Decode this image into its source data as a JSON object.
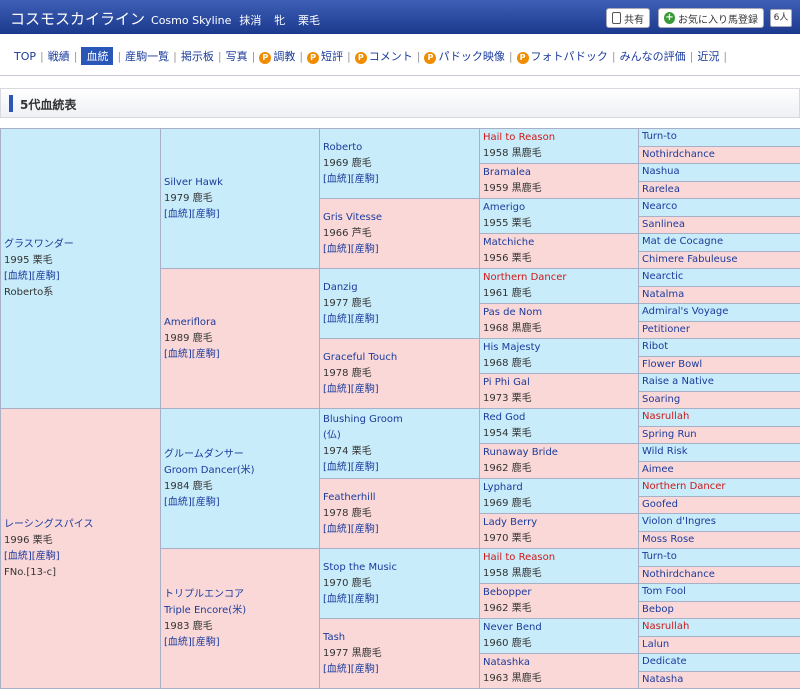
{
  "header": {
    "horse_name": "コスモスカイライン",
    "horse_name_en": "Cosmo Skyline",
    "status": "抹消",
    "sex": "牝",
    "color": "栗毛",
    "share_label": "共有",
    "fav_label": "お気に入り馬登録",
    "fav_count": "6人"
  },
  "nav": {
    "items": [
      {
        "label": "TOP",
        "badge": ""
      },
      {
        "label": "戦績",
        "badge": ""
      },
      {
        "label": "血統",
        "badge": "",
        "active": true
      },
      {
        "label": "産駒一覧",
        "badge": ""
      },
      {
        "label": "掲示板",
        "badge": ""
      },
      {
        "label": "写真",
        "badge": ""
      },
      {
        "label": "調教",
        "badge": "P"
      },
      {
        "label": "短評",
        "badge": "P"
      },
      {
        "label": "コメント",
        "badge": "P"
      },
      {
        "label": "パドック映像",
        "badge": "P"
      },
      {
        "label": "フォトパドック",
        "badge": "P"
      },
      {
        "label": "みんなの評価",
        "badge": ""
      },
      {
        "label": "近況",
        "badge": ""
      }
    ]
  },
  "section": {
    "title": "5代血統表"
  },
  "links_label": "[血統][産駒]",
  "pedigree": {
    "g1": [
      {
        "name": "グラスワンダー",
        "year": "1995",
        "color": "栗毛",
        "note": "Roberto系",
        "s": "m"
      },
      {
        "name": "レーシングスパイス",
        "year": "1996",
        "color": "栗毛",
        "note": "FNo.[13-c]",
        "s": "f"
      }
    ],
    "g2": [
      {
        "name": "Silver Hawk",
        "year": "1979",
        "color": "鹿毛",
        "s": "m"
      },
      {
        "name": "Ameriflora",
        "year": "1989",
        "color": "鹿毛",
        "s": "f"
      },
      {
        "name": "グルームダンサー",
        "name2": "Groom Dancer(米)",
        "year": "1984",
        "color": "鹿毛",
        "s": "m"
      },
      {
        "name": "トリプルエンコア",
        "name2": "Triple Encore(米)",
        "year": "1983",
        "color": "鹿毛",
        "s": "f"
      }
    ],
    "g3": [
      {
        "name": "Roberto",
        "year": "1969",
        "color": "鹿毛",
        "s": "m"
      },
      {
        "name": "Gris Vitesse",
        "year": "1966",
        "color": "芦毛",
        "s": "f"
      },
      {
        "name": "Danzig",
        "year": "1977",
        "color": "鹿毛",
        "s": "m"
      },
      {
        "name": "Graceful Touch",
        "year": "1978",
        "color": "鹿毛",
        "s": "f"
      },
      {
        "name": "Blushing Groom",
        "name2": "(仏)",
        "year": "1974",
        "color": "栗毛",
        "s": "m"
      },
      {
        "name": "Featherhill",
        "year": "1978",
        "color": "鹿毛",
        "s": "f"
      },
      {
        "name": "Stop the Music",
        "year": "1970",
        "color": "鹿毛",
        "s": "m"
      },
      {
        "name": "Tash",
        "year": "1977",
        "color": "黒鹿毛",
        "s": "f"
      }
    ],
    "g4": [
      {
        "name": "Hail to Reason",
        "year": "1958",
        "color": "黒鹿毛",
        "s": "m",
        "red": true
      },
      {
        "name": "Bramalea",
        "year": "1959",
        "color": "黒鹿毛",
        "s": "f"
      },
      {
        "name": "Amerigo",
        "year": "1955",
        "color": "栗毛",
        "s": "m"
      },
      {
        "name": "Matchiche",
        "year": "1956",
        "color": "栗毛",
        "s": "f"
      },
      {
        "name": "Northern Dancer",
        "year": "1961",
        "color": "鹿毛",
        "s": "m",
        "red": true
      },
      {
        "name": "Pas de Nom",
        "year": "1968",
        "color": "黒鹿毛",
        "s": "f"
      },
      {
        "name": "His Majesty",
        "year": "1968",
        "color": "鹿毛",
        "s": "m"
      },
      {
        "name": "Pi Phi Gal",
        "year": "1973",
        "color": "栗毛",
        "s": "f"
      },
      {
        "name": "Red God",
        "year": "1954",
        "color": "栗毛",
        "s": "m"
      },
      {
        "name": "Runaway Bride",
        "year": "1962",
        "color": "鹿毛",
        "s": "f"
      },
      {
        "name": "Lyphard",
        "year": "1969",
        "color": "鹿毛",
        "s": "m"
      },
      {
        "name": "Lady Berry",
        "year": "1970",
        "color": "栗毛",
        "s": "f"
      },
      {
        "name": "Hail to Reason",
        "year": "1958",
        "color": "黒鹿毛",
        "s": "m",
        "red": true
      },
      {
        "name": "Bebopper",
        "year": "1962",
        "color": "栗毛",
        "s": "f"
      },
      {
        "name": "Never Bend",
        "year": "1960",
        "color": "鹿毛",
        "s": "m"
      },
      {
        "name": "Natashka",
        "year": "1963",
        "color": "黒鹿毛",
        "s": "f"
      }
    ],
    "g5": [
      {
        "name": "Turn-to",
        "red": false
      },
      {
        "name": "Nothirdchance",
        "red": false
      },
      {
        "name": "Nashua",
        "red": false
      },
      {
        "name": "Rarelea",
        "red": false
      },
      {
        "name": "Nearco",
        "red": false
      },
      {
        "name": "Sanlinea",
        "red": false
      },
      {
        "name": "Mat de Cocagne",
        "red": false
      },
      {
        "name": "Chimere Fabuleuse",
        "red": false
      },
      {
        "name": "Nearctic",
        "red": false
      },
      {
        "name": "Natalma",
        "red": false
      },
      {
        "name": "Admiral's Voyage",
        "red": false
      },
      {
        "name": "Petitioner",
        "red": false
      },
      {
        "name": "Ribot",
        "red": false
      },
      {
        "name": "Flower Bowl",
        "red": false
      },
      {
        "name": "Raise a Native",
        "red": false
      },
      {
        "name": "Soaring",
        "red": false
      },
      {
        "name": "Nasrullah",
        "red": true
      },
      {
        "name": "Spring Run",
        "red": false
      },
      {
        "name": "Wild Risk",
        "red": false
      },
      {
        "name": "Aimee",
        "red": false
      },
      {
        "name": "Northern Dancer",
        "red": true
      },
      {
        "name": "Goofed",
        "red": false
      },
      {
        "name": "Violon d'Ingres",
        "red": false
      },
      {
        "name": "Moss Rose",
        "red": false
      },
      {
        "name": "Turn-to",
        "red": false
      },
      {
        "name": "Nothirdchance",
        "red": false
      },
      {
        "name": "Tom Fool",
        "red": false
      },
      {
        "name": "Bebop",
        "red": false
      },
      {
        "name": "Nasrullah",
        "red": true
      },
      {
        "name": "Lalun",
        "red": false
      },
      {
        "name": "Dedicate",
        "red": false
      },
      {
        "name": "Natasha",
        "red": false
      }
    ]
  }
}
